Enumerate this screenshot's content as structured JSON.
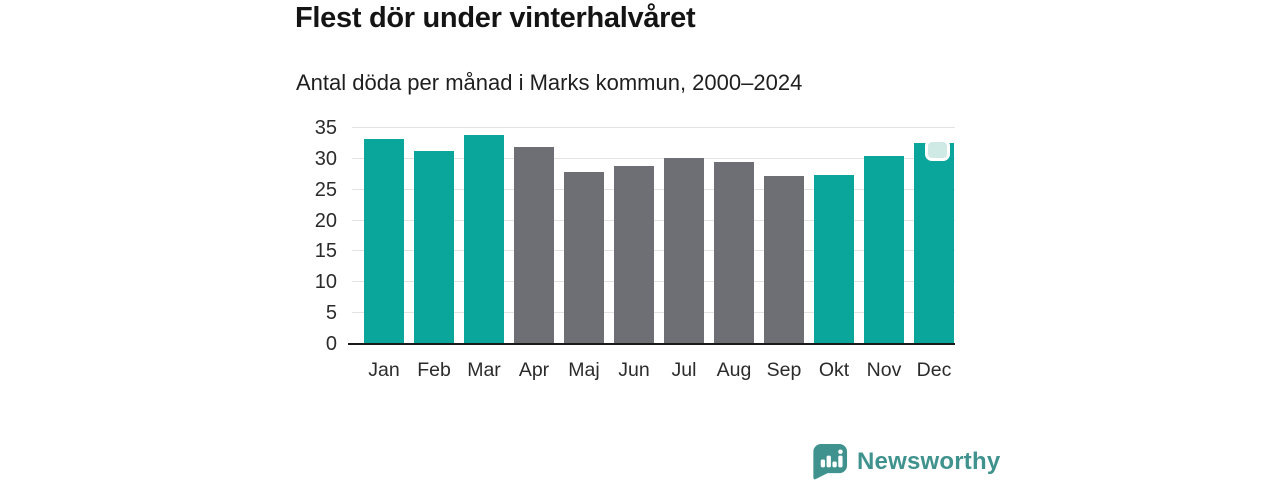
{
  "header": {
    "title": "Flest dör under vinterhalvåret",
    "subtitle": "Antal döda per månad i Marks kommun, 2000–2024"
  },
  "chart_data": {
    "type": "bar",
    "title": "Flest dör under vinterhalvåret",
    "subtitle": "Antal döda per månad i Marks kommun, 2000–2024",
    "categories": [
      "Jan",
      "Feb",
      "Mar",
      "Apr",
      "Maj",
      "Jun",
      "Jul",
      "Aug",
      "Sep",
      "Okt",
      "Nov",
      "Dec"
    ],
    "values": [
      33.2,
      31.2,
      33.9,
      32.0,
      27.8,
      28.9,
      30.2,
      29.5,
      27.2,
      27.4,
      30.5,
      32.5
    ],
    "bar_colors": [
      "#0aa69b",
      "#0aa69b",
      "#0aa69b",
      "#6e6e75",
      "#6e6e75",
      "#6e6e75",
      "#6e6e75",
      "#6e6e75",
      "#6e6e75",
      "#0aa69b",
      "#0aa69b",
      "#0aa69b"
    ],
    "highlighted_categories": [
      "Jan",
      "Feb",
      "Mar",
      "Okt",
      "Nov",
      "Dec"
    ],
    "xlabel": "",
    "ylabel": "",
    "ylim": [
      0,
      35
    ],
    "yticks": [
      0,
      5,
      10,
      15,
      20,
      25,
      30,
      35
    ],
    "grid": true,
    "legend": false
  },
  "colors": {
    "winter_bar": "#0aa69b",
    "summer_bar": "#6e6e75",
    "gridline": "#e3e3e3",
    "axis_line": "#1a1a1a",
    "highlight_handle_fill": "#cfe9e5",
    "brand_teal": "#3f928d"
  },
  "footer": {
    "brand": "Newsworthy"
  }
}
